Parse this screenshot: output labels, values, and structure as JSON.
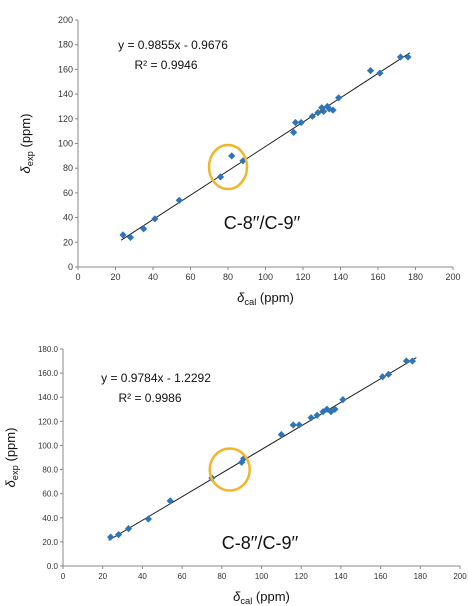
{
  "chart_data": [
    {
      "type": "scatter",
      "xlabel_symbol": "δ",
      "xlabel_sub": "cal",
      "xlabel_unit": " (ppm)",
      "ylabel_symbol": "δ",
      "ylabel_sub": "exp",
      "ylabel_unit": " (ppm)",
      "xlim": [
        0,
        200
      ],
      "ylim": [
        0,
        200
      ],
      "x_ticks": [
        0,
        20,
        40,
        60,
        80,
        100,
        120,
        140,
        160,
        180,
        200
      ],
      "y_ticks": [
        0,
        20,
        40,
        60,
        80,
        100,
        120,
        140,
        160,
        180,
        200
      ],
      "tick_decimals": 0,
      "grid": false,
      "equation": "y = 0.9855x - 0.9676",
      "r_squared": "R² = 0.9946",
      "trendline": {
        "slope": 0.9855,
        "intercept": -0.9676,
        "x_range": [
          23,
          177
        ]
      },
      "annotation": {
        "label": "C-8′′/C-9′′",
        "highlight_center": [
          80,
          81
        ],
        "color": "#f2b52b"
      },
      "marker_color": "#2e75b6",
      "points": [
        {
          "x": 24,
          "y": 26
        },
        {
          "x": 28,
          "y": 24
        },
        {
          "x": 35,
          "y": 31
        },
        {
          "x": 41,
          "y": 39
        },
        {
          "x": 54,
          "y": 54
        },
        {
          "x": 76,
          "y": 73
        },
        {
          "x": 82,
          "y": 90
        },
        {
          "x": 88,
          "y": 86
        },
        {
          "x": 115,
          "y": 109
        },
        {
          "x": 116,
          "y": 117
        },
        {
          "x": 119,
          "y": 117
        },
        {
          "x": 125,
          "y": 122
        },
        {
          "x": 128,
          "y": 125
        },
        {
          "x": 130,
          "y": 129
        },
        {
          "x": 131,
          "y": 126
        },
        {
          "x": 133,
          "y": 130
        },
        {
          "x": 134,
          "y": 128
        },
        {
          "x": 136,
          "y": 127
        },
        {
          "x": 139,
          "y": 137
        },
        {
          "x": 156,
          "y": 159
        },
        {
          "x": 161,
          "y": 157
        },
        {
          "x": 172,
          "y": 170
        },
        {
          "x": 176,
          "y": 170
        }
      ]
    },
    {
      "type": "scatter",
      "xlabel_symbol": "δ",
      "xlabel_sub": "cal",
      "xlabel_unit": " (ppm)",
      "ylabel_symbol": "δ",
      "ylabel_sub": "exp",
      "ylabel_unit": " (ppm)",
      "xlim": [
        0,
        200
      ],
      "ylim": [
        0,
        180
      ],
      "x_ticks": [
        0,
        20,
        40,
        60,
        80,
        100,
        120,
        140,
        160,
        180,
        200
      ],
      "y_ticks": [
        0,
        20,
        40,
        60,
        80,
        100,
        120,
        140,
        160,
        180
      ],
      "tick_decimals": 1,
      "grid": false,
      "equation": "y = 0.9784x - 1.2292",
      "r_squared": "R² = 0.9986",
      "trendline": {
        "slope": 0.9784,
        "intercept": -1.2292,
        "x_range": [
          23,
          178
        ]
      },
      "annotation": {
        "label": "C-8′′/C-9′′",
        "highlight_center": [
          84,
          80
        ],
        "color": "#f2b52b"
      },
      "marker_color": "#2e75b6",
      "points": [
        {
          "x": 24,
          "y": 24
        },
        {
          "x": 28,
          "y": 26
        },
        {
          "x": 33,
          "y": 31
        },
        {
          "x": 43,
          "y": 39
        },
        {
          "x": 54,
          "y": 54
        },
        {
          "x": 75,
          "y": 73
        },
        {
          "x": 90,
          "y": 86
        },
        {
          "x": 91,
          "y": 89
        },
        {
          "x": 110,
          "y": 109
        },
        {
          "x": 116,
          "y": 117
        },
        {
          "x": 119,
          "y": 117
        },
        {
          "x": 125,
          "y": 123
        },
        {
          "x": 128,
          "y": 125
        },
        {
          "x": 131,
          "y": 128
        },
        {
          "x": 133,
          "y": 130
        },
        {
          "x": 135,
          "y": 128
        },
        {
          "x": 137,
          "y": 130
        },
        {
          "x": 141,
          "y": 138
        },
        {
          "x": 161,
          "y": 157
        },
        {
          "x": 164,
          "y": 159
        },
        {
          "x": 173,
          "y": 170
        },
        {
          "x": 176,
          "y": 170
        }
      ]
    }
  ]
}
